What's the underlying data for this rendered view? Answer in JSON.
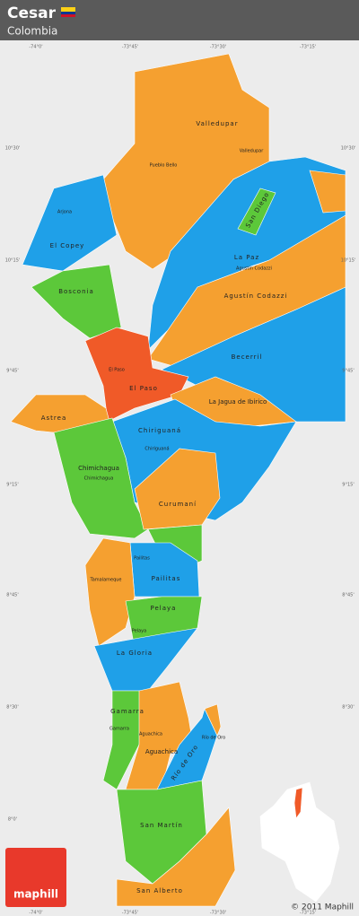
{
  "header": {
    "title": "Cesar",
    "subtitle": "Colombia"
  },
  "coordinates": {
    "longitudes": [
      "-74°0'",
      "-73°45'",
      "-73°30'",
      "-73°15'"
    ],
    "latitudes": [
      "10°30'",
      "10°15'",
      "9°45'",
      "9°15'",
      "8°45'",
      "8°30'",
      "8°0'"
    ]
  },
  "labels": {
    "major": [
      "Valledupar",
      "El Copey",
      "San Diego",
      "La Paz",
      "Agustín Codazzi",
      "Bosconia",
      "El Paso",
      "Becerril",
      "La Jagua de Ibirico",
      "Astrea",
      "Chiriguaná",
      "Chimichagua",
      "Curumaní",
      "Pailitas",
      "Tamalameque",
      "Pelaya",
      "La Gloria",
      "Gamarra",
      "Aguachica",
      "Río de Oro",
      "San Martín",
      "San Alberto"
    ],
    "minor": [
      "Pueblo Bello",
      "Valledupar",
      "Arjona",
      "Agustín Codazzi",
      "El Paso",
      "Chiriguaná",
      "Chimichagua",
      "Pailitas",
      "Pelaya",
      "Gamarra",
      "Aguachica",
      "Río de Oro"
    ]
  },
  "logo": "maphill",
  "copyright": "© 2011 Maphill"
}
